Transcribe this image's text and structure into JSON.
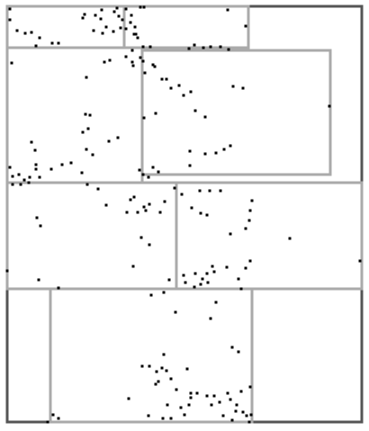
{
  "colors": {
    "background": "#ffffff",
    "outer_border": "#555555",
    "inner_border": "#aaaaaa",
    "point": "#000000"
  },
  "diagram": {
    "type": "spatial-partition",
    "grid": false,
    "legend": "none"
  }
}
